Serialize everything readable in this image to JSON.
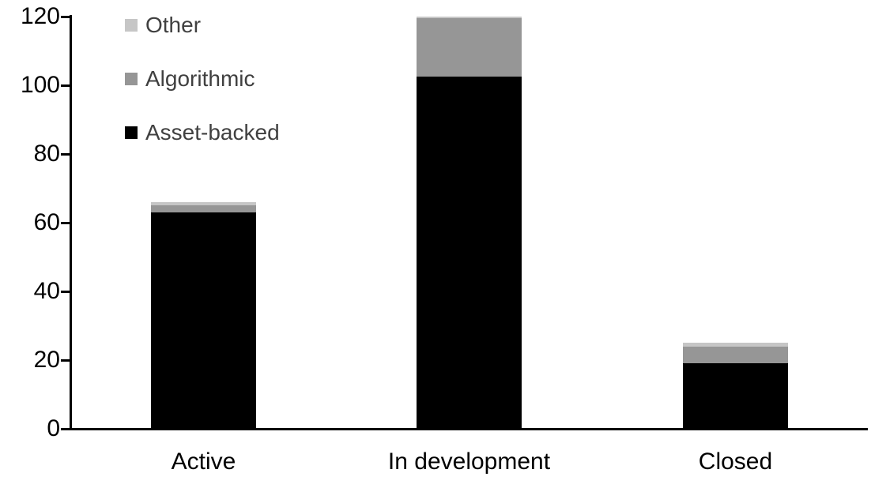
{
  "chart_data": {
    "type": "bar",
    "stacked": true,
    "title": "",
    "xlabel": "",
    "ylabel": "",
    "categories": [
      "Active",
      "In development",
      "Closed"
    ],
    "series": [
      {
        "name": "Asset-backed",
        "color": "#000000",
        "values": [
          63,
          102.5,
          19
        ]
      },
      {
        "name": "Algorithmic",
        "color": "#969696",
        "values": [
          2,
          17,
          5
        ]
      },
      {
        "name": "Other",
        "color": "#c6c6c6",
        "values": [
          1,
          0.5,
          1
        ]
      }
    ],
    "totals": [
      66,
      120,
      25
    ],
    "ylim": [
      0,
      120
    ],
    "yticks": [
      0,
      20,
      40,
      60,
      80,
      100,
      120
    ],
    "grid": false,
    "legend_position": "top-left",
    "legend_order": [
      "Other",
      "Algorithmic",
      "Asset-backed"
    ],
    "axis_color": "#000000",
    "legend_text_color": "#404040",
    "background_color": "#ffffff"
  }
}
